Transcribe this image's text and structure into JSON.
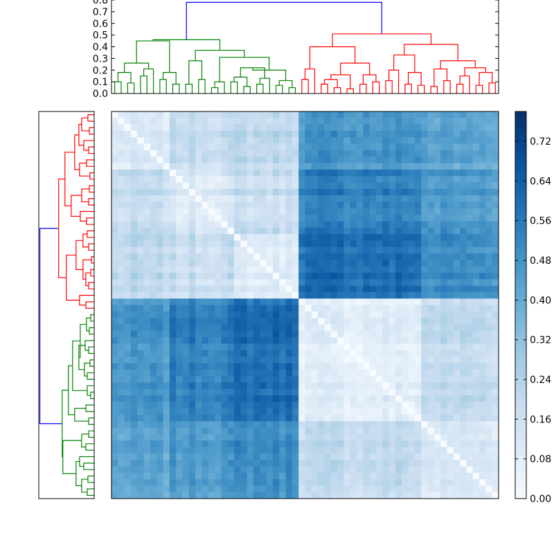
{
  "chart_data": {
    "type": "heatmap",
    "title": "",
    "n": 60,
    "clusters": [
      "green",
      "red"
    ],
    "colors": {
      "green": "#008000",
      "red": "#ff0000",
      "blue": "#0000ff",
      "cmap_low": "#f7fbff",
      "cmap_mid": "#6baed6",
      "cmap_high": "#08306b"
    },
    "top_dendrogram": {
      "ylim": [
        0,
        0.8
      ],
      "yticks": [
        "0.0",
        "0.1",
        "0.2",
        "0.3",
        "0.4",
        "0.5",
        "0.6",
        "0.7",
        "0.8"
      ],
      "root_height": 0.78,
      "green_cluster_height": 0.46,
      "red_cluster_height": 0.51
    },
    "left_dendrogram": {
      "root_height": 0.78
    },
    "heatmap": {
      "block_sizes": [
        9,
        10,
        10,
        19,
        12
      ],
      "block_means": [
        [
          0.1,
          0.18,
          0.2,
          0.47,
          0.42
        ],
        [
          0.18,
          0.12,
          0.18,
          0.54,
          0.46
        ],
        [
          0.2,
          0.18,
          0.1,
          0.6,
          0.5
        ],
        [
          0.47,
          0.54,
          0.6,
          0.08,
          0.2
        ],
        [
          0.42,
          0.46,
          0.5,
          0.2,
          0.12
        ]
      ]
    },
    "colorbar": {
      "range": [
        0.0,
        0.78
      ],
      "ticks": [
        "0.00",
        "0.08",
        "0.16",
        "0.24",
        "0.32",
        "0.40",
        "0.48",
        "0.56",
        "0.64",
        "0.72"
      ]
    }
  }
}
